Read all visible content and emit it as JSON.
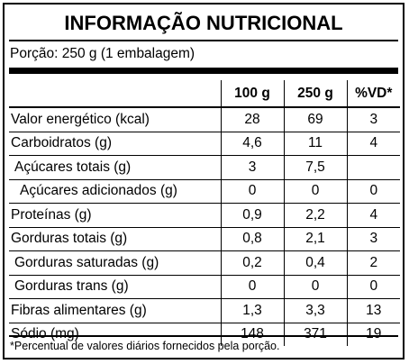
{
  "title": "INFORMAÇÃO NUTRICIONAL",
  "portion": "Porção: 250 g (1 embalagem)",
  "columns": [
    "",
    "100 g",
    "250 g",
    "%VD*"
  ],
  "rows": [
    {
      "label": "Valor energético (kcal)",
      "v100": "28",
      "v250": "69",
      "vd": "3",
      "indent": 0
    },
    {
      "label": "Carboidratos (g)",
      "v100": "4,6",
      "v250": "11",
      "vd": "4",
      "indent": 0
    },
    {
      "label": "Açúcares totais (g)",
      "v100": "3",
      "v250": "7,5",
      "vd": "",
      "indent": 1
    },
    {
      "label": "Açúcares adicionados (g)",
      "v100": "0",
      "v250": "0",
      "vd": "0",
      "indent": 2
    },
    {
      "label": "Proteínas (g)",
      "v100": "0,9",
      "v250": "2,2",
      "vd": "4",
      "indent": 0
    },
    {
      "label": "Gorduras totais (g)",
      "v100": "0,8",
      "v250": "2,1",
      "vd": "3",
      "indent": 0
    },
    {
      "label": "Gorduras saturadas (g)",
      "v100": "0,2",
      "v250": "0,4",
      "vd": "2",
      "indent": 1
    },
    {
      "label": "Gorduras trans (g)",
      "v100": "0",
      "v250": "0",
      "vd": "0",
      "indent": 1
    },
    {
      "label": "Fibras alimentares (g)",
      "v100": "1,3",
      "v250": "3,3",
      "vd": "13",
      "indent": 0
    },
    {
      "label": "Sódio (mg)",
      "v100": "148",
      "v250": "371",
      "vd": "19",
      "indent": 0
    }
  ],
  "footnote": "*Percentual de valores diários fornecidos pela porção."
}
